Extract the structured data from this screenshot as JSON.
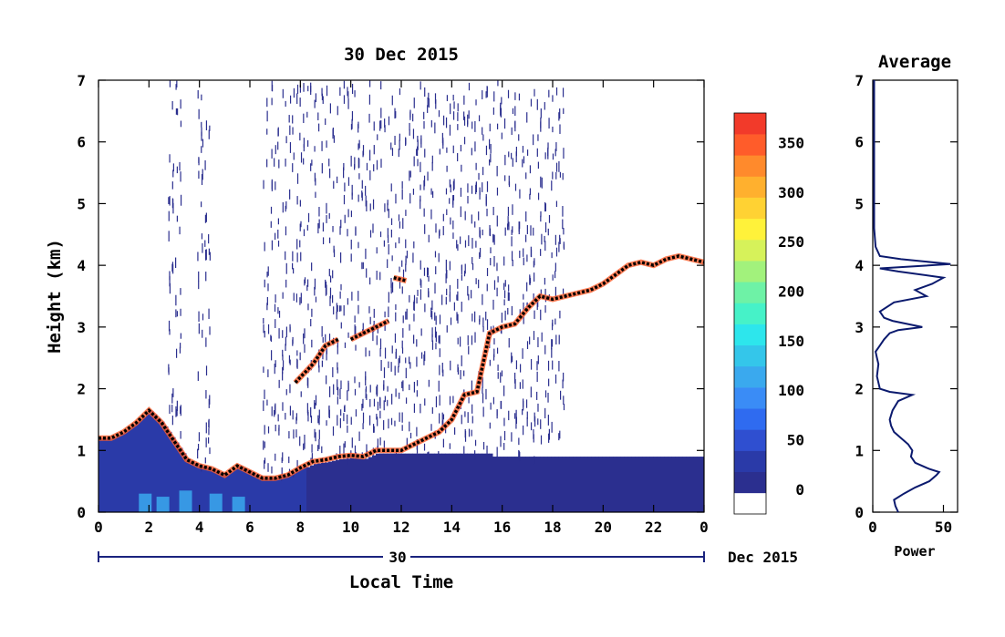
{
  "chart_data": [
    {
      "type": "heatmap",
      "title": "30 Dec 2015",
      "xlabel": "Local Time",
      "ylabel": "Height (km)",
      "x_ticks": [
        "0",
        "2",
        "4",
        "6",
        "8",
        "10",
        "12",
        "14",
        "16",
        "18",
        "20",
        "22",
        "0"
      ],
      "y_ticks": [
        "0",
        "1",
        "2",
        "3",
        "4",
        "5",
        "6",
        "7"
      ],
      "xlim": [
        0,
        24
      ],
      "ylim": [
        0,
        7
      ],
      "date_bar": {
        "day": "30",
        "month_year": "Dec 2015"
      },
      "colorbar": {
        "ticks": [
          "0",
          "50",
          "100",
          "150",
          "200",
          "250",
          "300",
          "350"
        ],
        "range": [
          -25,
          380
        ],
        "colors": [
          "#ffffff",
          "#2b2f8f",
          "#2a3aa8",
          "#2f4fd0",
          "#2f6bf0",
          "#3a8cf6",
          "#3aa9ee",
          "#34c6ea",
          "#2de6ec",
          "#46f2c8",
          "#6ef2a6",
          "#a2f27c",
          "#d6f25a",
          "#fff23a",
          "#ffd233",
          "#ffb02e",
          "#ff8a2c",
          "#ff5c2a",
          "#f23a2a"
        ]
      },
      "cloud_top_height_km": {
        "x": [
          0,
          0.5,
          1,
          1.5,
          2,
          2.5,
          3,
          3.5,
          4,
          4.5,
          5,
          5.5,
          6,
          6.5,
          7,
          7.5,
          8,
          8.5,
          9,
          9.5,
          10,
          10.5,
          11,
          11.5,
          12,
          12.5,
          13,
          13.5,
          14,
          14.5,
          15,
          15.5,
          16,
          16.5,
          17,
          17.5,
          18,
          18.5,
          19,
          19.5,
          20,
          20.5,
          21,
          21.5,
          22,
          22.5,
          23,
          23.5,
          24
        ],
        "y": [
          1.2,
          1.2,
          1.3,
          1.45,
          1.65,
          1.45,
          1.15,
          0.85,
          0.75,
          0.7,
          0.6,
          0.75,
          0.65,
          0.55,
          0.55,
          0.6,
          0.72,
          0.82,
          0.85,
          0.9,
          0.92,
          0.9,
          1.0,
          1.0,
          1.0,
          1.1,
          1.2,
          1.3,
          1.5,
          1.9,
          1.95,
          2.9,
          3.0,
          3.05,
          3.3,
          3.5,
          3.45,
          3.5,
          3.55,
          3.6,
          3.7,
          3.85,
          4.0,
          4.05,
          4.0,
          4.1,
          4.15,
          4.1,
          4.05
        ]
      },
      "elevated_layers": [
        {
          "x": [
            7.8,
            8.5,
            9,
            9.5
          ],
          "y": [
            2.1,
            2.4,
            2.7,
            2.8
          ]
        },
        {
          "x": [
            10,
            10.5,
            11,
            11.5
          ],
          "y": [
            2.8,
            2.9,
            3.0,
            3.1
          ]
        },
        {
          "x": [
            11.7,
            12.2
          ],
          "y": [
            3.8,
            3.75
          ]
        }
      ]
    },
    {
      "type": "line",
      "title": "Average",
      "xlabel": "Power",
      "x_ticks": [
        "0",
        "50"
      ],
      "y_ticks": [
        "0",
        "1",
        "2",
        "3",
        "4",
        "5",
        "6",
        "7"
      ],
      "xlim": [
        0,
        60
      ],
      "ylim": [
        0,
        7
      ],
      "x": [
        18,
        16,
        15,
        22,
        30,
        40,
        45,
        47,
        40,
        30,
        27,
        28,
        25,
        20,
        15,
        13,
        12,
        14,
        18,
        28,
        12,
        5,
        3,
        4,
        3,
        2,
        5,
        8,
        12,
        18,
        35,
        14,
        8,
        5,
        15,
        38,
        30,
        42,
        50,
        18,
        5,
        55,
        20,
        5,
        2,
        1,
        1,
        1,
        1,
        1
      ],
      "y": [
        0.0,
        0.1,
        0.2,
        0.3,
        0.4,
        0.5,
        0.6,
        0.65,
        0.7,
        0.8,
        0.9,
        1.0,
        1.1,
        1.2,
        1.3,
        1.4,
        1.5,
        1.65,
        1.8,
        1.9,
        1.95,
        2.0,
        2.2,
        2.4,
        2.5,
        2.6,
        2.7,
        2.8,
        2.9,
        2.95,
        3.0,
        3.1,
        3.15,
        3.25,
        3.4,
        3.5,
        3.6,
        3.7,
        3.8,
        3.9,
        3.95,
        4.02,
        4.1,
        4.15,
        4.3,
        4.6,
        5.0,
        5.5,
        6.0,
        7.0
      ]
    }
  ]
}
